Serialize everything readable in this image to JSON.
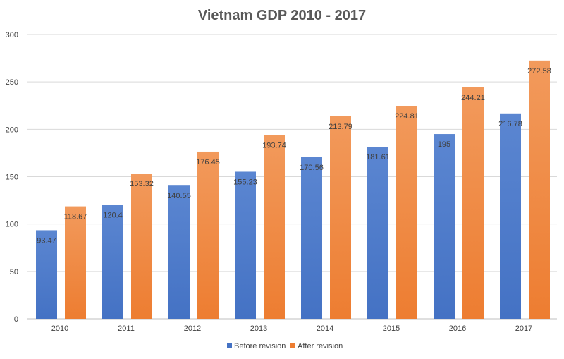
{
  "chart_data": {
    "type": "bar",
    "title": "Vietnam GDP 2010 - 2017",
    "xlabel": "",
    "ylabel": "",
    "categories": [
      "2010",
      "2011",
      "2012",
      "2013",
      "2014",
      "2015",
      "2016",
      "2017"
    ],
    "series": [
      {
        "name": "Before revision",
        "color": "#4472C4",
        "values": [
          93.47,
          120.4,
          140.55,
          155.23,
          170.56,
          181.61,
          195,
          216.78
        ],
        "labels": [
          "93.47",
          "120.4",
          "140.55",
          "155.23",
          "170.56",
          "181.61",
          "195",
          "216.78"
        ]
      },
      {
        "name": "After revision",
        "color": "#ED7D31",
        "values": [
          118.67,
          153.32,
          176.45,
          193.74,
          213.79,
          224.81,
          244.21,
          272.58
        ],
        "labels": [
          "118.67",
          "153.32",
          "176.45",
          "193.74",
          "213.79",
          "224.81",
          "244.21",
          "272.58"
        ]
      }
    ],
    "ylim": [
      0,
      300
    ],
    "yticks": [
      "0",
      "50",
      "100",
      "150",
      "200",
      "250",
      "300"
    ],
    "grid": true,
    "legend_position": "bottom"
  }
}
